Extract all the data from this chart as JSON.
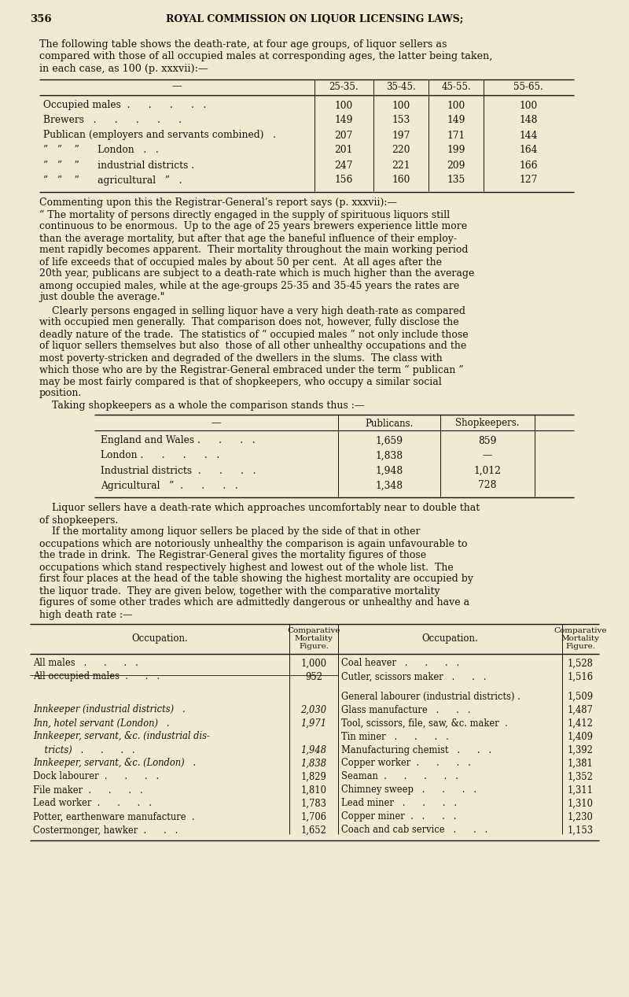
{
  "bg_color": "#f0ead2",
  "text_color": "#1a1008",
  "page_number": "356",
  "header": "ROYAL COMMISSION ON LIQUOR LICENSING LAWS;",
  "intro_text": [
    "The following table shows the death-rate, at four age groups, of liquor sellers as",
    "compared with those of all occupied males at corresponding ages, the latter being taken,",
    "in each case, as 100 (p. xxxvii):—"
  ],
  "table1_col_labels": [
    "25-35.",
    "35-45.",
    "45-55.",
    "55-65."
  ],
  "table1_rows": [
    [
      "Occupied males  .      .      .      .   .",
      "100",
      "100",
      "100",
      "100"
    ],
    [
      "Brewers   .      .      .      .      .",
      "149",
      "153",
      "149",
      "148"
    ],
    [
      "Publican (employers and servants combined)   .",
      "207",
      "197",
      "171",
      "144"
    ],
    [
      "”   ”    ”      London   .   .",
      "201",
      "220",
      "199",
      "164"
    ],
    [
      "”   ”    ”      industrial districts .",
      "247",
      "221",
      "209",
      "166"
    ],
    [
      "”   ”    ”      agricultural   ”   .",
      "156",
      "160",
      "135",
      "127"
    ]
  ],
  "comment1": "Commenting upon this the Registrar-General’s report says (p. xxxvii):—",
  "comment2": [
    "“ The mortality of persons directly engaged in the supply of spirituous liquors still",
    "continuous to be enormous.  Up to the age of 25 years brewers experience little more",
    "than the average mortality, but after that age the baneful influence of their employ-",
    "ment rapidly becomes apparent.  Their mortality throughout the main working period",
    "of life exceeds that of occupied males by about 50 per cent.  At all ages after the",
    "20th year, publicans are subject to a death-rate which is much higher than the average",
    "among occupied males, while at the age-groups 25-35 and 35-45 years the rates are",
    "just double the average.\""
  ],
  "comment3": [
    "    Clearly persons engaged in selling liquor have a very high death-rate as compared",
    "with occupied men generally.  That comparison does not, however, fully disclose the",
    "deadly nature of the trade.  The statistics of “ occupied males ” not only include those",
    "of liquor sellers themselves but also  those of all other unhealthy occupations and the",
    "most poverty-stricken and degraded of the dwellers in the slums.  The class with",
    "which those who are by the Registrar-General embraced under the term “ publican ”",
    "may be most fairly compared is that of shopkeepers, who occupy a similar social",
    "position.",
    "    Taking shopkeepers as a whole the comparison stands thus :—"
  ],
  "table2_col_labels": [
    "Publicans.",
    "Shopkeepers."
  ],
  "table2_rows": [
    [
      "England and Wales .      .      .   .",
      "1,659",
      "859"
    ],
    [
      "London .      .      .      .   .",
      "1,838",
      "—"
    ],
    [
      "Industrial districts  .      .      .   .",
      "1,948",
      "1,012"
    ],
    [
      "Agricultural   ”  .      .      .   .",
      "1,348",
      "728"
    ]
  ],
  "comment4": [
    "    Liquor sellers have a death-rate which approaches uncomfortably near to double that",
    "of shopkeepers.",
    "    If the mortality among liquor sellers be placed by the side of that in other",
    "occupations which are notoriously unhealthy the comparison is again unfavourable to",
    "the trade in drink.  The Registrar-General gives the mortality figures of those",
    "occupations which stand respectively highest and lowest out of the whole list.  The",
    "first four places at the head of the table showing the highest mortality are occupied by",
    "the liquor trade.  They are given below, together with the comparative mortality",
    "figures of some other trades which are admittedly dangerous or unhealthy and have a",
    "high death rate :—"
  ],
  "table3_left_rows": [
    [
      "All males   .      .      .   .",
      "1,000",
      false
    ],
    [
      "All occupied males  .      .   .",
      "952",
      false
    ],
    [
      "",
      "",
      true
    ],
    [
      "Innkeeper (industrial districts)   .",
      "2,030",
      true
    ],
    [
      "Inn, hotel servant (London)   .",
      "1,971",
      true
    ],
    [
      "Innkeeper, servant, &c. (industrial dis-",
      "",
      true
    ],
    [
      "    tricts)   .      .      .   .",
      "1,948",
      true
    ],
    [
      "Innkeeper, servant, &c. (London)   .",
      "1,838",
      true
    ],
    [
      "Dock labourer  .      .      .   .",
      "1,829",
      false
    ],
    [
      "File maker  .      .      .   .",
      "1,810",
      false
    ],
    [
      "Lead worker  .      .      .   .",
      "1,783",
      false
    ],
    [
      "Potter, earthenware manufacture  .",
      "1,706",
      false
    ],
    [
      "Costermonger, hawker  .      .   .",
      "1,652",
      false
    ]
  ],
  "table3_right_rows": [
    [
      "Coal heaver   .      .      .   .",
      "1,528"
    ],
    [
      "Cutler, scissors maker   .      .   .",
      "1,516"
    ],
    [
      "General labourer (industrial districts) .",
      "1,509"
    ],
    [
      "Glass manufacture   .      .   .",
      "1,487"
    ],
    [
      "Tool, scissors, file, saw, &c. maker  .",
      "1,412"
    ],
    [
      "Tin miner   .      .      .   .",
      "1,409"
    ],
    [
      "Manufacturing chemist   .      .   .",
      "1,392"
    ],
    [
      "Copper worker  .      .      .   .",
      "1,381"
    ],
    [
      "Seaman  .      .      .      .   .",
      "1,352"
    ],
    [
      "Chimney sweep   .      .      .   .",
      "1,311"
    ],
    [
      "Lead miner   .      .      .   .",
      "1,310"
    ],
    [
      "Copper miner  .   .      .   .",
      "1,230"
    ],
    [
      "Coach and cab service   .      .   .",
      "1,153"
    ]
  ]
}
